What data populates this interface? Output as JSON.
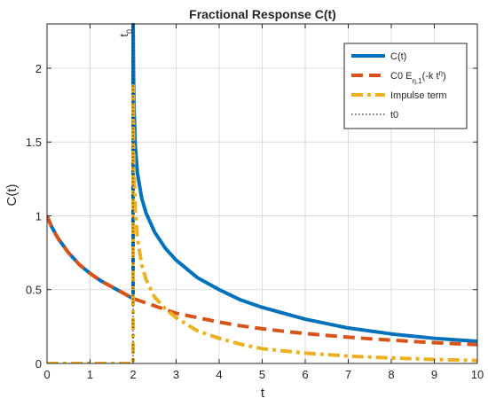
{
  "chart_data": {
    "type": "line",
    "title": "Fractional Response C(t)",
    "xlabel": "t",
    "ylabel": "C(t)",
    "xlim": [
      0,
      10
    ],
    "ylim": [
      0,
      2.3
    ],
    "x_ticks": [
      0,
      1,
      2,
      3,
      4,
      5,
      6,
      7,
      8,
      9,
      10
    ],
    "x_tick_labels": [
      "0",
      "1",
      "2",
      "3",
      "4",
      "5",
      "6",
      "7",
      "8",
      "9",
      "10"
    ],
    "y_ticks": [
      0,
      0.5,
      1,
      1.5,
      2
    ],
    "y_tick_labels": [
      "0",
      "0.5",
      "1",
      "1.5",
      "2"
    ],
    "grid": true,
    "legend_position": "top-right",
    "annotation": {
      "text": "t0",
      "x": 2
    },
    "series": [
      {
        "name": "C(t)",
        "color": "#0072BD",
        "style": "solid",
        "x": [
          0,
          0.1,
          0.25,
          0.5,
          0.75,
          1,
          1.25,
          1.5,
          1.75,
          2,
          2.001,
          2.01,
          2.02,
          2.05,
          2.1,
          2.2,
          2.3,
          2.5,
          2.75,
          3,
          3.5,
          4,
          4.5,
          5,
          6,
          7,
          8,
          9,
          10
        ],
        "y": [
          1,
          0.93,
          0.85,
          0.75,
          0.67,
          0.61,
          0.56,
          0.52,
          0.48,
          0.44,
          2.3,
          1.95,
          1.75,
          1.48,
          1.29,
          1.12,
          1.02,
          0.89,
          0.78,
          0.7,
          0.58,
          0.5,
          0.43,
          0.38,
          0.3,
          0.24,
          0.2,
          0.17,
          0.15
        ]
      },
      {
        "name": "C0 E",
        "color": "#D95319",
        "style": "dashed",
        "x": [
          0,
          0.1,
          0.25,
          0.5,
          0.75,
          1,
          1.25,
          1.5,
          1.75,
          2,
          2.5,
          3,
          3.5,
          4,
          4.5,
          5,
          5.5,
          6,
          6.5,
          7,
          7.5,
          8,
          8.5,
          9,
          9.5,
          10
        ],
        "y": [
          1,
          0.93,
          0.85,
          0.75,
          0.67,
          0.61,
          0.56,
          0.52,
          0.48,
          0.44,
          0.39,
          0.34,
          0.31,
          0.28,
          0.255,
          0.235,
          0.218,
          0.203,
          0.19,
          0.178,
          0.167,
          0.158,
          0.149,
          0.141,
          0.134,
          0.128
        ]
      },
      {
        "name": "Impulse term",
        "color": "#EDB120",
        "style": "dashdot",
        "x": [
          0,
          1.99,
          2,
          2.001,
          2.01,
          2.02,
          2.05,
          2.1,
          2.2,
          2.3,
          2.5,
          2.75,
          3,
          3.5,
          4,
          4.5,
          5,
          6,
          7,
          8,
          9,
          10
        ],
        "y": [
          0,
          0,
          0,
          1.88,
          1.5,
          1.3,
          1.05,
          0.85,
          0.67,
          0.57,
          0.45,
          0.37,
          0.31,
          0.22,
          0.17,
          0.13,
          0.1,
          0.07,
          0.05,
          0.037,
          0.027,
          0.02
        ]
      },
      {
        "name": "t0",
        "color": "#262626",
        "style": "dotted",
        "x": [
          2,
          2
        ],
        "y": [
          0,
          2.3
        ]
      }
    ],
    "legend": {
      "entries": [
        {
          "series": 0,
          "label_html": "C(t)"
        },
        {
          "series": 1,
          "label_html": "C0 E<tspan baseline-shift=\"sub\" font-size=\"8\">η,1</tspan>(-k t<tspan baseline-shift=\"super\" font-size=\"8\">η</tspan>)"
        },
        {
          "series": 2,
          "label_html": "Impulse term"
        },
        {
          "series": 3,
          "label_html": "t0"
        }
      ]
    }
  }
}
